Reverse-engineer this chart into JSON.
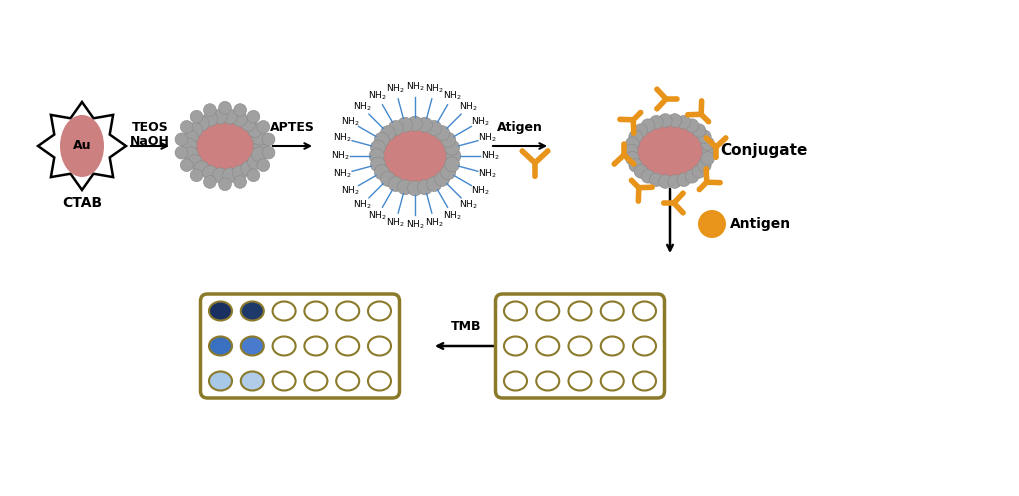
{
  "background_color": "#ffffff",
  "au_color": "#cd8080",
  "silica_shell_color": "#a0a0a0",
  "nh2_line_color": "#4488cc",
  "antibody_color": "#e8941a",
  "antigen_color": "#e8941a",
  "well_plate_border": "#8B7A2A",
  "well_colors_dark1": "#1a3060",
  "well_colors_dark2": "#1e3a6a",
  "well_colors_mid1": "#3a70c0",
  "well_colors_mid2": "#4a7acc",
  "well_colors_light1": "#a8c8e8",
  "well_colors_light2": "#b0cce8",
  "label_ctab": "CTAB",
  "label_teos": "TEOS",
  "label_naoh": "NaOH",
  "label_aptes": "APTES",
  "label_atigen": "Atigen",
  "label_conjugate": "Conjugate",
  "label_antigen": "Antigen",
  "label_tmb": "TMB",
  "au_label": "Au"
}
